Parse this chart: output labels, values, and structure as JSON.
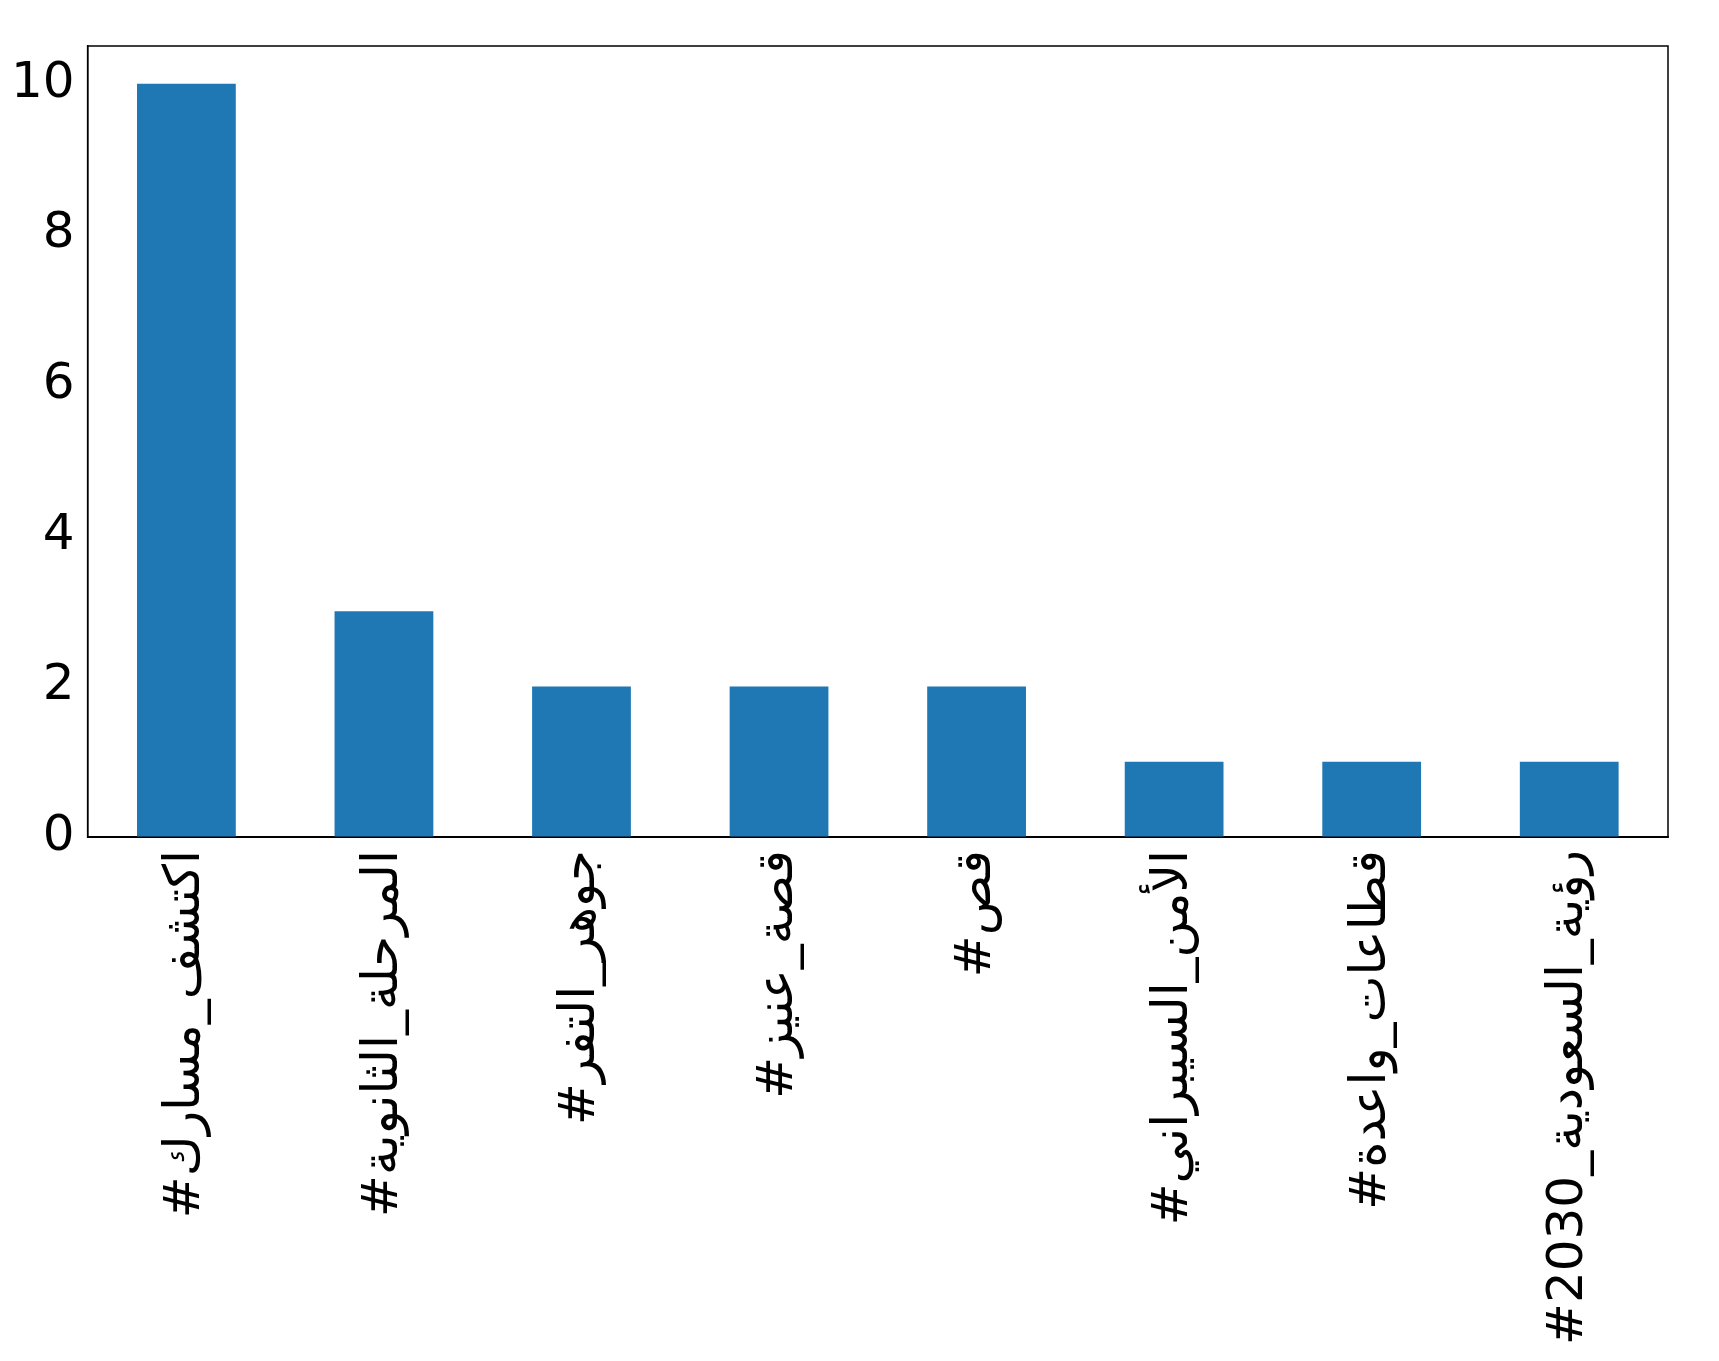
{
  "chart_data": {
    "type": "bar",
    "categories": [
      "#اكتشف_مسارك",
      "#المرحلة_الثانوية",
      "#جوهر_التفر",
      "#قصة_عنيز",
      "#قص",
      "#الأمن_السيبراني",
      "#قطاعات_واعدة",
      "#رؤية_السعودية_2030"
    ],
    "values": [
      10,
      3,
      2,
      2,
      2,
      1,
      1,
      1
    ],
    "color": "#1f77b4",
    "ylim": [
      0,
      10.5
    ],
    "yticks": [
      0,
      2,
      4,
      6,
      8,
      10
    ],
    "grid": false,
    "legend": false
  }
}
